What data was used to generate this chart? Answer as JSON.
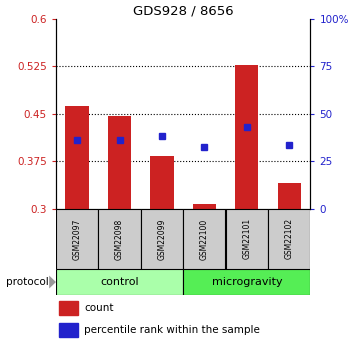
{
  "title": "GDS928 / 8656",
  "samples": [
    "GSM22097",
    "GSM22098",
    "GSM22099",
    "GSM22100",
    "GSM22101",
    "GSM22102"
  ],
  "red_bar_tops": [
    0.462,
    0.447,
    0.383,
    0.307,
    0.527,
    0.34
  ],
  "red_bar_bottom": 0.3,
  "blue_y": [
    0.408,
    0.408,
    0.415,
    0.398,
    0.43,
    0.4
  ],
  "ylim_left": [
    0.3,
    0.6
  ],
  "ylim_right": [
    0,
    100
  ],
  "yticks_left": [
    0.3,
    0.375,
    0.45,
    0.525,
    0.6
  ],
  "yticks_left_labels": [
    "0.3",
    "0.375",
    "0.45",
    "0.525",
    "0.6"
  ],
  "yticks_right": [
    0,
    25,
    50,
    75,
    100
  ],
  "yticks_right_labels": [
    "0",
    "25",
    "50",
    "75",
    "100%"
  ],
  "dotted_lines": [
    0.375,
    0.45,
    0.525
  ],
  "protocol_groups": [
    {
      "label": "control",
      "start": 0,
      "end": 2,
      "color": "#aaffaa"
    },
    {
      "label": "microgravity",
      "start": 3,
      "end": 5,
      "color": "#55ee55"
    }
  ],
  "red_color": "#cc2222",
  "blue_color": "#2222cc",
  "bar_width": 0.55,
  "sample_box_color": "#cccccc",
  "legend_items": [
    "count",
    "percentile rank within the sample"
  ]
}
